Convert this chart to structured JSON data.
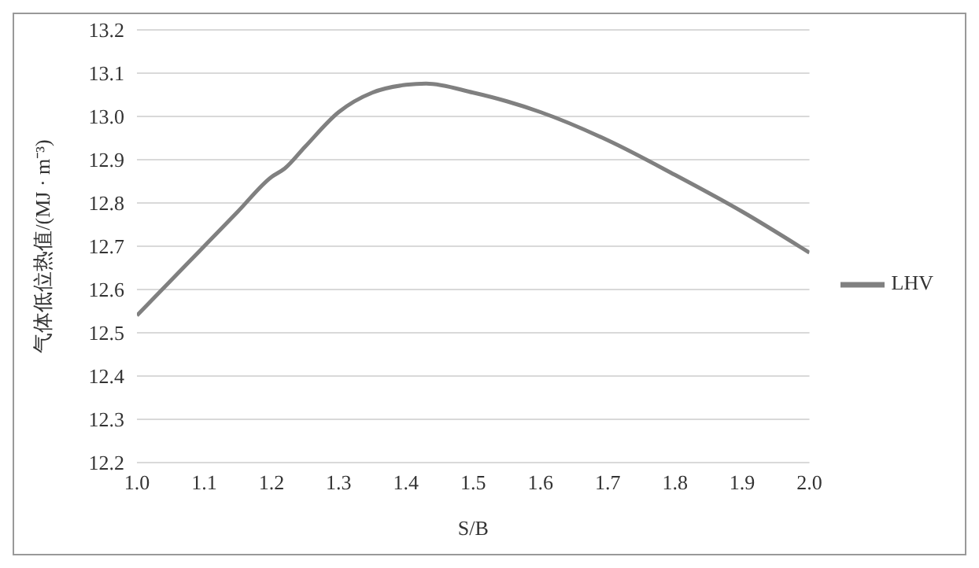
{
  "chart_data": {
    "type": "line",
    "xlabel": "S/B",
    "ylabel": "气体低位热值/(MJ · m⁻³)",
    "x": [
      1.0,
      1.05,
      1.1,
      1.15,
      1.2,
      1.22,
      1.25,
      1.3,
      1.35,
      1.4,
      1.43,
      1.5,
      1.55,
      1.6,
      1.7,
      1.8,
      1.9,
      2.0
    ],
    "series": [
      {
        "name": "LHV",
        "color": "#808080",
        "values": [
          12.54,
          12.62,
          12.7,
          12.78,
          12.86,
          12.88,
          12.93,
          13.01,
          13.055,
          13.073,
          13.076,
          13.055,
          13.035,
          13.01,
          12.945,
          12.865,
          12.78,
          12.685
        ]
      }
    ],
    "xlim": [
      1.0,
      2.0
    ],
    "xticks": [
      {
        "value": 1.0,
        "label": "1.0"
      },
      {
        "value": 1.1,
        "label": "1.1"
      },
      {
        "value": 1.2,
        "label": "1.2"
      },
      {
        "value": 1.3,
        "label": "1.3"
      },
      {
        "value": 1.4,
        "label": "1.4"
      },
      {
        "value": 1.5,
        "label": "1.5"
      },
      {
        "value": 1.6,
        "label": "1.6"
      },
      {
        "value": 1.7,
        "label": "1.7"
      },
      {
        "value": 1.8,
        "label": "1.8"
      },
      {
        "value": 1.9,
        "label": "1.9"
      },
      {
        "value": 2.0,
        "label": "2.0"
      }
    ],
    "ylim": [
      12.2,
      13.2
    ],
    "yticks": [
      12.2,
      12.3,
      12.4,
      12.5,
      12.6,
      12.7,
      12.8,
      12.9,
      {
        "value": 13.0,
        "label": "13.0"
      },
      13.1,
      13.2
    ],
    "grid": "y",
    "legend": "right",
    "marker": "none",
    "line_style": "solid"
  }
}
